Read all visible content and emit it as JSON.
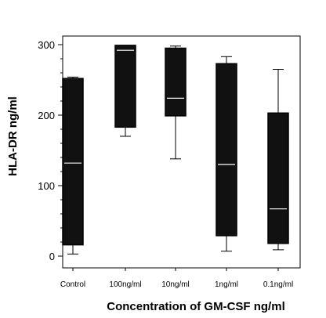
{
  "chart_data": {
    "type": "box",
    "xlabel": "Concentration of GM-CSF ng/ml",
    "ylabel": "HLA-DR ng/ml",
    "ylim": [
      0,
      300
    ],
    "yticks": [
      0,
      100,
      200,
      300
    ],
    "categories": [
      "Control",
      "100ng/ml",
      "10ng/ml",
      "1ng/ml",
      "0.1ng/ml"
    ],
    "boxes": [
      {
        "min": 3,
        "q1": 16,
        "median": 132,
        "q3": 252,
        "max": 254
      },
      {
        "min": 170,
        "q1": 183,
        "median": 292,
        "q3": 299,
        "max": 299
      },
      {
        "min": 138,
        "q1": 199,
        "median": 224,
        "q3": 295,
        "max": 298
      },
      {
        "min": 7,
        "q1": 29,
        "median": 130,
        "q3": 273,
        "max": 283
      },
      {
        "min": 9,
        "q1": 18,
        "median": 67,
        "q3": 203,
        "max": 265
      }
    ],
    "box_color": "#111111",
    "median_color": "#ffffff",
    "grid": false,
    "legend": "none"
  }
}
